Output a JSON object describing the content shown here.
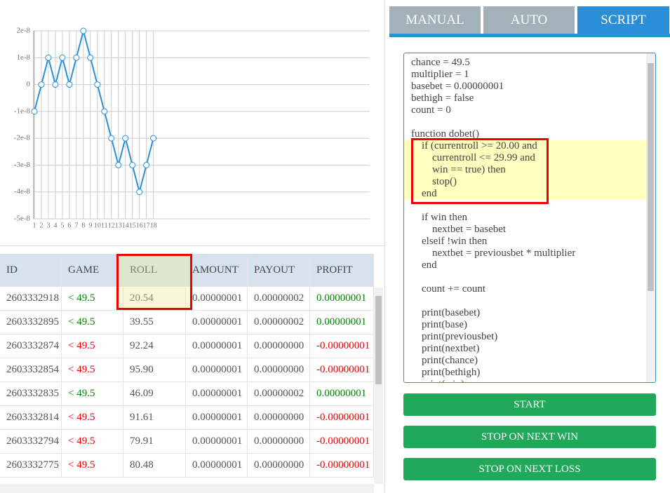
{
  "chart_data": {
    "type": "line",
    "x": [
      1,
      2,
      3,
      4,
      5,
      6,
      7,
      8,
      9,
      10,
      11,
      12,
      13,
      14,
      15,
      16,
      17,
      18
    ],
    "series": [
      {
        "color": "#2a8fd6",
        "values": [
          -1e-08,
          0,
          1e-08,
          0,
          1e-08,
          0,
          1e-08,
          2e-08,
          1e-08,
          0,
          -1e-08,
          -2e-08,
          -3e-08,
          -2e-08,
          -3e-08,
          -4e-08,
          -3e-08,
          -2e-08
        ]
      }
    ],
    "xlim": [
      1,
      49
    ],
    "xticks": [
      1,
      2,
      3,
      4,
      5,
      6,
      7,
      8,
      9,
      10,
      11,
      12,
      13,
      14,
      15,
      16,
      17,
      18
    ],
    "ylim": [
      -5e-08,
      2e-08
    ],
    "yticks": [
      2e-08,
      1e-08,
      0,
      -1e-08,
      -2e-08,
      -3e-08,
      -4e-08,
      -5e-08
    ],
    "grid": true
  },
  "table": {
    "columns": [
      "ID",
      "GAME",
      "ROLL",
      "AMOUNT",
      "PAYOUT",
      "PROFIT"
    ],
    "rows": [
      [
        "2603332918",
        "< 49.5",
        "20.54",
        "0.00000001",
        "0.00000002",
        "0.00000001"
      ],
      [
        "2603332895",
        "< 49.5",
        "39.55",
        "0.00000001",
        "0.00000002",
        "0.00000001"
      ],
      [
        "2603332874",
        "< 49.5",
        "92.24",
        "0.00000001",
        "0.00000000",
        "-0.00000001"
      ],
      [
        "2603332854",
        "< 49.5",
        "95.90",
        "0.00000001",
        "0.00000000",
        "-0.00000001"
      ],
      [
        "2603332835",
        "< 49.5",
        "46.09",
        "0.00000001",
        "0.00000002",
        "0.00000001"
      ],
      [
        "2603332814",
        "< 49.5",
        "91.61",
        "0.00000001",
        "0.00000000",
        "-0.00000001"
      ],
      [
        "2603332794",
        "< 49.5",
        "79.91",
        "0.00000001",
        "0.00000000",
        "-0.00000001"
      ],
      [
        "2603332775",
        "< 49.5",
        "80.48",
        "0.00000001",
        "0.00000000",
        "-0.00000001"
      ]
    ]
  },
  "tabs": [
    "MANUAL",
    "AUTO",
    "SCRIPT"
  ],
  "script": {
    "blocks": [
      [
        "chance = 49.5",
        "multiplier = 1",
        "basebet = 0.00000001",
        "bethigh = false",
        "count = 0"
      ],
      [
        "function dobet()",
        "    if (currentroll >= 20.00 and",
        "        currentroll <= 29.99 and",
        "        win == true) then",
        "        stop()",
        "    end"
      ],
      [
        "    if win then",
        "        nextbet = basebet",
        "    elseif !win then",
        "        nextbet = previousbet * multiplier",
        "    end"
      ],
      [
        "    count += count"
      ],
      [
        "    print(basebet)",
        "    print(base)",
        "    print(previousbet)",
        "    print(nextbet)",
        "    print(chance)",
        "    print(bethigh)",
        "    print(win)"
      ]
    ]
  },
  "buttons": [
    "START",
    "STOP ON NEXT WIN",
    "STOP ON NEXT LOSS"
  ]
}
